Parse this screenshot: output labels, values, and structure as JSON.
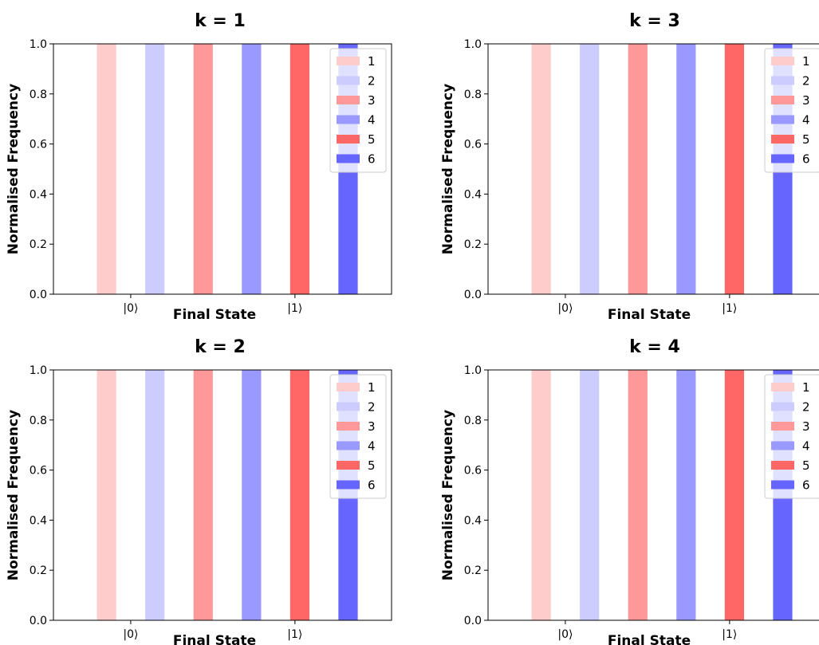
{
  "chart_data": [
    {
      "type": "bar",
      "title": "k = 1",
      "xlabel": "Final State",
      "ylabel": "Normalised Frequency",
      "x_tick_labels": [
        "|0⟩",
        "|1⟩"
      ],
      "y_tick_labels": [
        "0.0",
        "0.2",
        "0.4",
        "0.6",
        "0.8",
        "1.0"
      ],
      "ylim": [
        0,
        1
      ],
      "legend_position": "top-right",
      "series": [
        {
          "name": "1",
          "color": "#ffcccc",
          "values": [
            1.0
          ]
        },
        {
          "name": "2",
          "color": "#ccccff",
          "values": [
            1.0
          ]
        },
        {
          "name": "3",
          "color": "#ff9999",
          "values": [
            1.0
          ]
        },
        {
          "name": "4",
          "color": "#9999ff",
          "values": [
            1.0
          ]
        },
        {
          "name": "5",
          "color": "#ff6666",
          "values": [
            1.0
          ]
        },
        {
          "name": "6",
          "color": "#6666ff",
          "values": [
            1.0
          ]
        }
      ]
    },
    {
      "type": "bar",
      "title": "k = 3",
      "xlabel": "Final State",
      "ylabel": "Normalised Frequency",
      "x_tick_labels": [
        "|0⟩",
        "|1⟩"
      ],
      "y_tick_labels": [
        "0.0",
        "0.2",
        "0.4",
        "0.6",
        "0.8",
        "1.0"
      ],
      "ylim": [
        0,
        1
      ],
      "legend_position": "top-right",
      "series": [
        {
          "name": "1",
          "color": "#ffcccc",
          "values": [
            1.0
          ]
        },
        {
          "name": "2",
          "color": "#ccccff",
          "values": [
            1.0
          ]
        },
        {
          "name": "3",
          "color": "#ff9999",
          "values": [
            1.0
          ]
        },
        {
          "name": "4",
          "color": "#9999ff",
          "values": [
            1.0
          ]
        },
        {
          "name": "5",
          "color": "#ff6666",
          "values": [
            1.0
          ]
        },
        {
          "name": "6",
          "color": "#6666ff",
          "values": [
            1.0
          ]
        }
      ]
    },
    {
      "type": "bar",
      "title": "k = 2",
      "xlabel": "Final State",
      "ylabel": "Normalised Frequency",
      "x_tick_labels": [
        "|0⟩",
        "|1⟩"
      ],
      "y_tick_labels": [
        "0.0",
        "0.2",
        "0.4",
        "0.6",
        "0.8",
        "1.0"
      ],
      "ylim": [
        0,
        1
      ],
      "legend_position": "top-right",
      "series": [
        {
          "name": "1",
          "color": "#ffcccc",
          "values": [
            1.0
          ]
        },
        {
          "name": "2",
          "color": "#ccccff",
          "values": [
            1.0
          ]
        },
        {
          "name": "3",
          "color": "#ff9999",
          "values": [
            1.0
          ]
        },
        {
          "name": "4",
          "color": "#9999ff",
          "values": [
            1.0
          ]
        },
        {
          "name": "5",
          "color": "#ff6666",
          "values": [
            1.0
          ]
        },
        {
          "name": "6",
          "color": "#6666ff",
          "values": [
            1.0
          ]
        }
      ]
    },
    {
      "type": "bar",
      "title": "k = 4",
      "xlabel": "Final State",
      "ylabel": "Normalised Frequency",
      "x_tick_labels": [
        "|0⟩",
        "|1⟩"
      ],
      "y_tick_labels": [
        "0.0",
        "0.2",
        "0.4",
        "0.6",
        "0.8",
        "1.0"
      ],
      "ylim": [
        0,
        1
      ],
      "legend_position": "top-right",
      "series": [
        {
          "name": "1",
          "color": "#ffcccc",
          "values": [
            1.0
          ]
        },
        {
          "name": "2",
          "color": "#ccccff",
          "values": [
            1.0
          ]
        },
        {
          "name": "3",
          "color": "#ff9999",
          "values": [
            1.0
          ]
        },
        {
          "name": "4",
          "color": "#9999ff",
          "values": [
            1.0
          ]
        },
        {
          "name": "5",
          "color": "#ff6666",
          "values": [
            1.0
          ]
        },
        {
          "name": "6",
          "color": "#6666ff",
          "values": [
            1.0
          ]
        }
      ]
    }
  ]
}
